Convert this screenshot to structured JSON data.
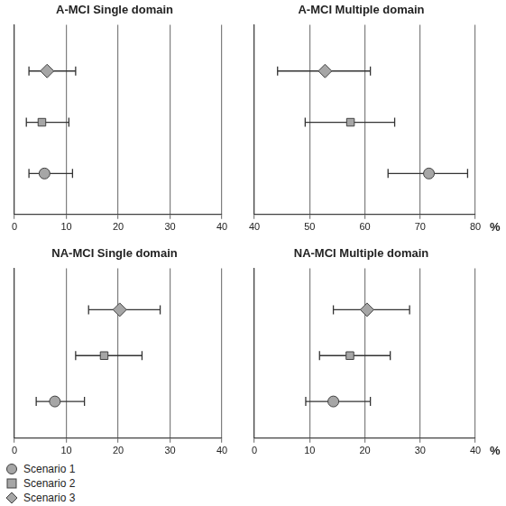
{
  "chart_data": [
    {
      "type": "scatter",
      "title": "A-MCI Single domain",
      "xlim": [
        0,
        40
      ],
      "xticks": [
        0,
        10,
        20,
        30,
        40
      ],
      "grid": true,
      "tick_labels": "x",
      "series": [
        {
          "name": "Scenario 1",
          "marker": "circle",
          "color": "#a6a6a6",
          "values": [
            5.8
          ],
          "lower": [
            2.8
          ],
          "upper": [
            11.2
          ]
        },
        {
          "name": "Scenario 2",
          "marker": "square",
          "color": "#a6a6a6",
          "values": [
            5.3
          ],
          "lower": [
            2.3
          ],
          "upper": [
            10.5
          ]
        },
        {
          "name": "Scenario 3",
          "marker": "diamond",
          "color": "#a6a6a6",
          "values": [
            6.3
          ],
          "lower": [
            2.8
          ],
          "upper": [
            11.8
          ]
        }
      ]
    },
    {
      "type": "scatter",
      "title": "A-MCI Multiple domain",
      "x_label": "%",
      "xlim": [
        40,
        80
      ],
      "xticks": [
        40,
        50,
        60,
        70,
        80
      ],
      "grid": true,
      "tick_labels": "x",
      "series": [
        {
          "name": "Scenario 1",
          "marker": "circle",
          "color": "#a6a6a6",
          "values": [
            71.6
          ],
          "lower": [
            64.2
          ],
          "upper": [
            78.6
          ]
        },
        {
          "name": "Scenario 2",
          "marker": "square",
          "color": "#a6a6a6",
          "values": [
            57.4
          ],
          "lower": [
            49.2
          ],
          "upper": [
            65.4
          ]
        },
        {
          "name": "Scenario 3",
          "marker": "diamond",
          "color": "#a6a6a6",
          "values": [
            52.8
          ],
          "lower": [
            44.2
          ],
          "upper": [
            61.0
          ]
        }
      ]
    },
    {
      "type": "scatter",
      "title": "NA-MCI Single domain",
      "legend": "bottom",
      "xlim": [
        0,
        40
      ],
      "xticks": [
        0,
        10,
        20,
        30,
        40
      ],
      "grid": true,
      "tick_labels": "x",
      "series": [
        {
          "name": "Scenario 1",
          "marker": "circle",
          "color": "#a6a6a6",
          "values": [
            7.8
          ],
          "lower": [
            4.2
          ],
          "upper": [
            13.5
          ]
        },
        {
          "name": "Scenario 2",
          "marker": "square",
          "color": "#a6a6a6",
          "values": [
            17.3
          ],
          "lower": [
            11.8
          ],
          "upper": [
            24.6
          ]
        },
        {
          "name": "Scenario 3",
          "marker": "diamond",
          "color": "#a6a6a6",
          "values": [
            20.3
          ],
          "lower": [
            14.3
          ],
          "upper": [
            28.1
          ]
        }
      ]
    },
    {
      "type": "scatter",
      "title": "NA-MCI Multiple domain",
      "x_label": "%",
      "xlim": [
        0,
        40
      ],
      "xticks": [
        0,
        10,
        20,
        30,
        40
      ],
      "grid": true,
      "tick_labels": "x",
      "series": [
        {
          "name": "Scenario 1",
          "marker": "circle",
          "color": "#a6a6a6",
          "values": [
            14.3
          ],
          "lower": [
            9.3
          ],
          "upper": [
            21.0
          ]
        },
        {
          "name": "Scenario 2",
          "marker": "square",
          "color": "#a6a6a6",
          "values": [
            17.3
          ],
          "lower": [
            11.8
          ],
          "upper": [
            24.6
          ]
        },
        {
          "name": "Scenario 3",
          "marker": "diamond",
          "color": "#a6a6a6",
          "values": [
            20.4
          ],
          "lower": [
            14.3
          ],
          "upper": [
            28.1
          ]
        }
      ]
    }
  ]
}
